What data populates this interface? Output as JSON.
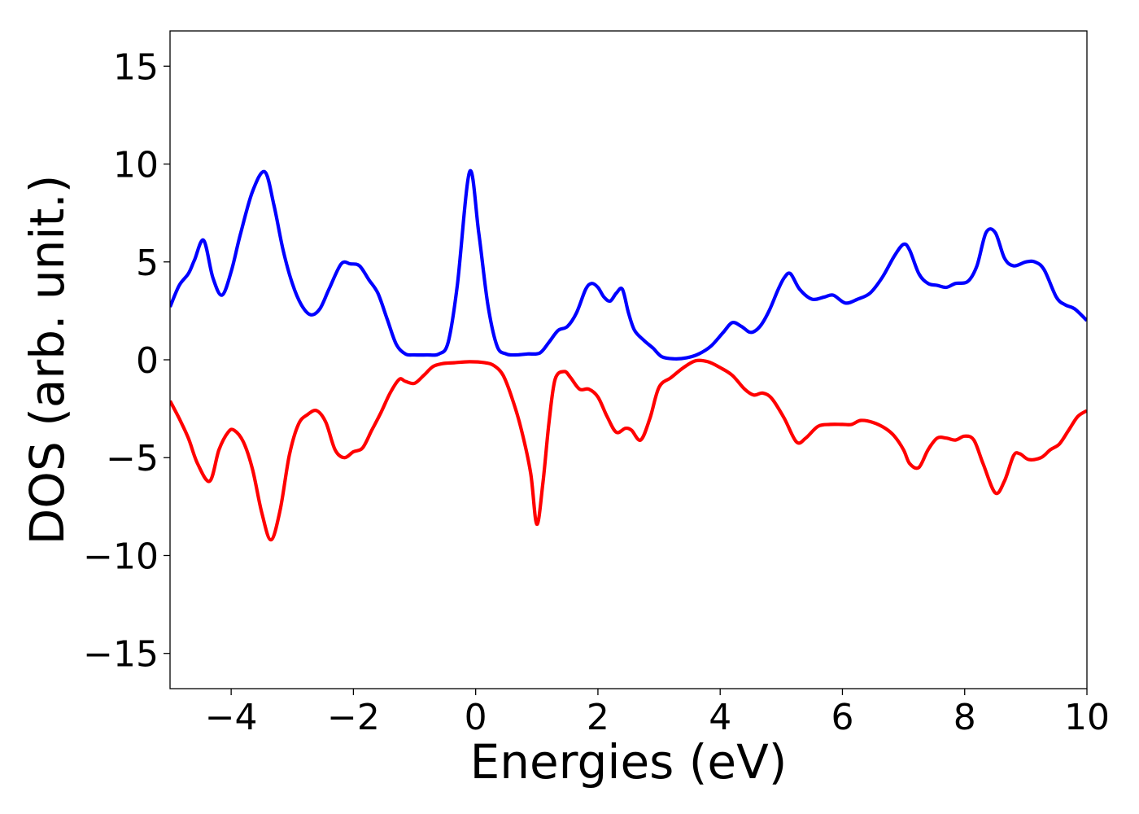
{
  "chart_data": {
    "type": "line",
    "title": "",
    "xlabel": "Energies (eV)",
    "ylabel": "DOS (arb. unit.)",
    "xlim": [
      -5,
      10
    ],
    "ylim": [
      -16.8,
      16.8
    ],
    "grid": false,
    "legend": "none",
    "xticks": [
      {
        "value": -4,
        "label": "−4"
      },
      {
        "value": -2,
        "label": "−2"
      },
      {
        "value": 0,
        "label": "0"
      },
      {
        "value": 2,
        "label": "2"
      },
      {
        "value": 4,
        "label": "4"
      },
      {
        "value": 6,
        "label": "6"
      },
      {
        "value": 8,
        "label": "8"
      },
      {
        "value": 10,
        "label": "10"
      }
    ],
    "yticks": [
      {
        "value": -15,
        "label": "−15"
      },
      {
        "value": -10,
        "label": "−10"
      },
      {
        "value": -5,
        "label": "−5"
      },
      {
        "value": 0,
        "label": "0"
      },
      {
        "value": 5,
        "label": "5"
      },
      {
        "value": 10,
        "label": "10"
      },
      {
        "value": 15,
        "label": "15"
      }
    ],
    "series": [
      {
        "color": "#0000ff",
        "x": [
          -5.0,
          -4.85,
          -4.7,
          -4.6,
          -4.45,
          -4.3,
          -4.15,
          -4.0,
          -3.85,
          -3.65,
          -3.45,
          -3.3,
          -3.15,
          -3.0,
          -2.85,
          -2.7,
          -2.55,
          -2.4,
          -2.2,
          -2.05,
          -1.9,
          -1.75,
          -1.6,
          -1.45,
          -1.3,
          -1.15,
          -1.0,
          -0.8,
          -0.6,
          -0.45,
          -0.3,
          -0.1,
          0.05,
          0.2,
          0.35,
          0.5,
          0.65,
          0.85,
          1.05,
          1.2,
          1.35,
          1.5,
          1.65,
          1.8,
          1.9,
          2.0,
          2.1,
          2.2,
          2.3,
          2.4,
          2.5,
          2.6,
          2.75,
          2.9,
          3.05,
          3.25,
          3.45,
          3.65,
          3.85,
          4.05,
          4.2,
          4.35,
          4.5,
          4.65,
          4.8,
          4.95,
          5.05,
          5.15,
          5.3,
          5.5,
          5.7,
          5.85,
          6.05,
          6.25,
          6.45,
          6.65,
          6.85,
          7.0,
          7.1,
          7.25,
          7.4,
          7.55,
          7.7,
          7.85,
          8.05,
          8.2,
          8.35,
          8.5,
          8.65,
          8.8,
          9.0,
          9.15,
          9.3,
          9.5,
          9.65,
          9.8,
          10.0
        ],
        "y": [
          2.7,
          3.8,
          4.4,
          5.1,
          6.1,
          4.2,
          3.3,
          4.5,
          6.4,
          8.6,
          9.6,
          7.9,
          5.6,
          3.9,
          2.8,
          2.3,
          2.6,
          3.6,
          4.9,
          4.9,
          4.8,
          4.1,
          3.4,
          2.1,
          0.8,
          0.3,
          0.25,
          0.25,
          0.3,
          0.9,
          3.8,
          9.6,
          6.5,
          2.8,
          0.7,
          0.3,
          0.25,
          0.3,
          0.35,
          0.9,
          1.5,
          1.7,
          2.4,
          3.6,
          3.9,
          3.7,
          3.2,
          3.0,
          3.4,
          3.6,
          2.4,
          1.5,
          1.0,
          0.6,
          0.15,
          0.05,
          0.1,
          0.3,
          0.7,
          1.4,
          1.9,
          1.7,
          1.4,
          1.7,
          2.5,
          3.6,
          4.2,
          4.4,
          3.6,
          3.1,
          3.2,
          3.3,
          2.9,
          3.1,
          3.4,
          4.2,
          5.3,
          5.9,
          5.6,
          4.4,
          3.9,
          3.8,
          3.7,
          3.9,
          4.0,
          4.8,
          6.5,
          6.5,
          5.2,
          4.8,
          5.0,
          5.0,
          4.6,
          3.2,
          2.8,
          2.6,
          2.0
        ]
      },
      {
        "color": "#ff0000",
        "x": [
          -5.0,
          -4.85,
          -4.7,
          -4.55,
          -4.35,
          -4.2,
          -4.05,
          -3.95,
          -3.8,
          -3.65,
          -3.5,
          -3.35,
          -3.2,
          -3.05,
          -2.9,
          -2.75,
          -2.6,
          -2.45,
          -2.3,
          -2.15,
          -2.0,
          -1.85,
          -1.7,
          -1.55,
          -1.4,
          -1.25,
          -1.15,
          -1.0,
          -0.85,
          -0.7,
          -0.55,
          -0.35,
          -0.1,
          0.15,
          0.3,
          0.45,
          0.6,
          0.75,
          0.9,
          1.0,
          1.1,
          1.2,
          1.3,
          1.45,
          1.55,
          1.7,
          1.85,
          2.0,
          2.15,
          2.3,
          2.45,
          2.55,
          2.7,
          2.85,
          3.0,
          3.2,
          3.4,
          3.6,
          3.8,
          4.0,
          4.2,
          4.4,
          4.55,
          4.7,
          4.85,
          5.05,
          5.25,
          5.4,
          5.6,
          5.8,
          6.0,
          6.15,
          6.3,
          6.5,
          6.7,
          6.85,
          7.0,
          7.1,
          7.25,
          7.4,
          7.55,
          7.7,
          7.85,
          8.0,
          8.15,
          8.3,
          8.5,
          8.65,
          8.8,
          8.9,
          9.05,
          9.25,
          9.4,
          9.55,
          9.7,
          9.85,
          10.0
        ],
        "y": [
          -2.1,
          -3.0,
          -4.0,
          -5.3,
          -6.2,
          -4.6,
          -3.7,
          -3.6,
          -4.2,
          -5.6,
          -7.8,
          -9.2,
          -7.7,
          -4.9,
          -3.3,
          -2.8,
          -2.6,
          -3.2,
          -4.6,
          -5.0,
          -4.7,
          -4.5,
          -3.6,
          -2.7,
          -1.7,
          -1.0,
          -1.1,
          -1.2,
          -0.8,
          -0.35,
          -0.2,
          -0.15,
          -0.1,
          -0.15,
          -0.3,
          -0.8,
          -2.0,
          -3.6,
          -5.8,
          -8.4,
          -6.3,
          -3.2,
          -1.0,
          -0.6,
          -0.9,
          -1.5,
          -1.5,
          -1.9,
          -2.9,
          -3.7,
          -3.5,
          -3.6,
          -4.1,
          -3.0,
          -1.4,
          -0.9,
          -0.4,
          -0.05,
          -0.1,
          -0.4,
          -0.8,
          -1.5,
          -1.8,
          -1.7,
          -2.0,
          -3.0,
          -4.2,
          -4.0,
          -3.4,
          -3.3,
          -3.3,
          -3.3,
          -3.1,
          -3.2,
          -3.5,
          -3.9,
          -4.6,
          -5.3,
          -5.5,
          -4.6,
          -4.0,
          -4.0,
          -4.1,
          -3.9,
          -4.1,
          -5.3,
          -6.8,
          -6.2,
          -4.9,
          -4.8,
          -5.1,
          -5.0,
          -4.6,
          -4.3,
          -3.6,
          -2.9,
          -2.6
        ]
      }
    ]
  }
}
